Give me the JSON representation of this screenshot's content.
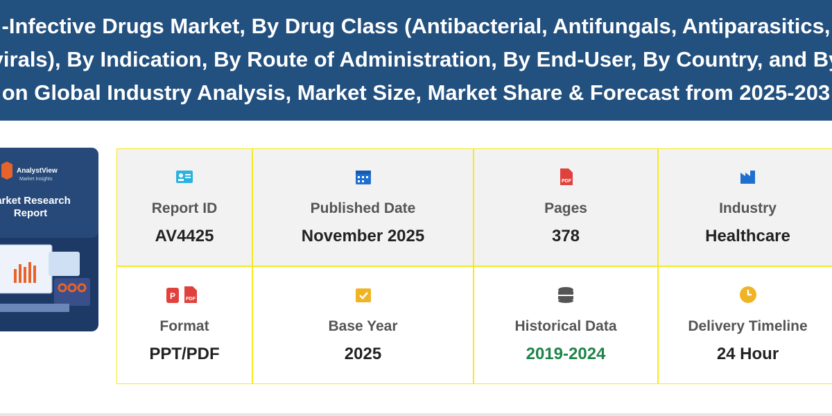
{
  "header": {
    "title_lines": [
      "-Infective Drugs Market, By Drug Class (Antibacterial, Antifungals, Antiparasitics,",
      "virals), By Indication, By Route of Administration, By End-User, By Country, and By",
      "on Global Industry Analysis, Market Size, Market Share & Forecast from 2025-203"
    ]
  },
  "cover": {
    "brand": "AnalystView",
    "tagline": "Market Insights",
    "title_lines": [
      "arket Research",
      "Report"
    ]
  },
  "details": {
    "rows": [
      [
        {
          "label": "Report ID",
          "value": "AV4425"
        },
        {
          "label": "Published Date",
          "value": "November 2025"
        },
        {
          "label": "Pages",
          "value": "378"
        },
        {
          "label": "Industry",
          "value": "Healthcare"
        }
      ],
      [
        {
          "label": "Format",
          "value": "PPT/PDF"
        },
        {
          "label": "Base Year",
          "value": "2025"
        },
        {
          "label": "Historical Data",
          "value": "2019-2024"
        },
        {
          "label": "Delivery Timeline",
          "value": "24 Hour"
        }
      ]
    ]
  }
}
